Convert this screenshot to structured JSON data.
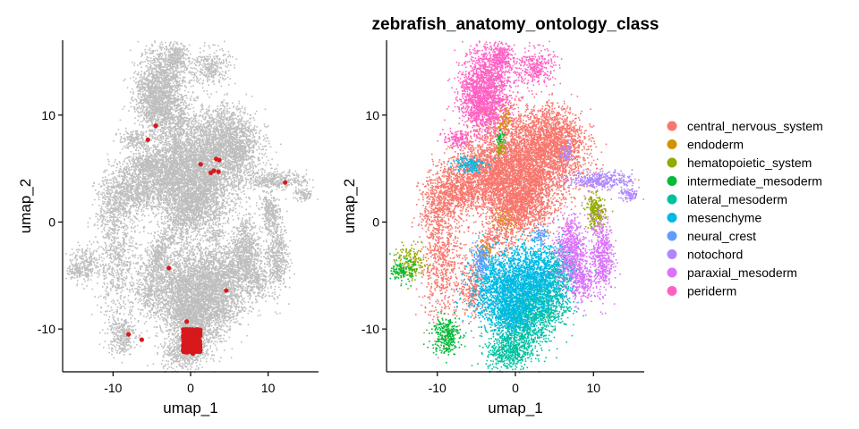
{
  "chart_data": [
    {
      "type": "scatter",
      "panel": "left",
      "title": "",
      "xlabel": "umap_1",
      "ylabel": "umap_2",
      "xlim": [
        -16.5,
        16.5
      ],
      "ylim": [
        -14,
        17
      ],
      "x_ticks": [
        -10,
        0,
        10
      ],
      "x_tick_labels": [
        "-10",
        "0",
        "10"
      ],
      "y_ticks": [
        -10,
        0,
        10
      ],
      "y_tick_labels": [
        "-10",
        "0",
        "10"
      ],
      "background_color": "#bebebe",
      "highlight_color": "#d7191c",
      "grid": false,
      "highlighted_points": [
        {
          "x": -4.5,
          "y": 9.0
        },
        {
          "x": -5.5,
          "y": 7.7
        },
        {
          "x": 1.3,
          "y": 5.4
        },
        {
          "x": 3.3,
          "y": 5.9
        },
        {
          "x": 3.7,
          "y": 5.8
        },
        {
          "x": 3.0,
          "y": 4.8
        },
        {
          "x": 3.6,
          "y": 4.7
        },
        {
          "x": 2.6,
          "y": 4.6
        },
        {
          "x": 12.2,
          "y": 3.7
        },
        {
          "x": -2.8,
          "y": -4.3
        },
        {
          "x": 4.6,
          "y": -6.4
        },
        {
          "x": -0.5,
          "y": -9.3
        },
        {
          "x": -8.0,
          "y": -10.5
        },
        {
          "x": -6.3,
          "y": -11.0
        },
        {
          "x": -0.3,
          "y": -12.1
        },
        {
          "x": 0.3,
          "y": -12.3
        }
      ],
      "highlight_cluster": {
        "x_range": [
          -1.0,
          1.3
        ],
        "y_range": [
          -12.2,
          -10.0
        ]
      }
    },
    {
      "type": "scatter",
      "panel": "right",
      "title": "zebrafish_anatomy_ontology_class",
      "xlabel": "umap_1",
      "ylabel": "umap_2",
      "xlim": [
        -16.5,
        16.5
      ],
      "ylim": [
        -14,
        17
      ],
      "x_ticks": [
        -10,
        0,
        10
      ],
      "x_tick_labels": [
        "-10",
        "0",
        "10"
      ],
      "y_ticks": [
        -10,
        0,
        10
      ],
      "y_tick_labels": [
        "-10",
        "0",
        "10"
      ],
      "grid": false,
      "legend_position": "right",
      "series": [
        {
          "name": "central_nervous_system",
          "color": "#F8766D"
        },
        {
          "name": "endoderm",
          "color": "#D39200"
        },
        {
          "name": "hematopoietic_system",
          "color": "#93AA00"
        },
        {
          "name": "intermediate_mesoderm",
          "color": "#00BA38"
        },
        {
          "name": "lateral_mesoderm",
          "color": "#00C19F"
        },
        {
          "name": "mesenchyme",
          "color": "#00B9E3"
        },
        {
          "name": "neural_crest",
          "color": "#619CFF"
        },
        {
          "name": "notochord",
          "color": "#AE87FF"
        },
        {
          "name": "paraxial_mesoderm",
          "color": "#DB72FB"
        },
        {
          "name": "periderm",
          "color": "#FF61C3"
        }
      ]
    }
  ]
}
